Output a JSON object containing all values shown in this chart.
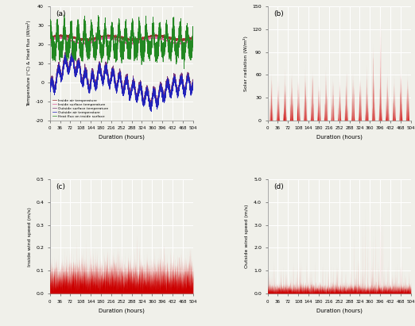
{
  "panel_a_label": "(a)",
  "panel_b_label": "(b)",
  "panel_c_label": "(c)",
  "panel_d_label": "(d)",
  "xlabel": "Duration (hours)",
  "ylabel_a": "Temperature (°C) & Heat flux (W/m²)",
  "ylabel_b": "Solar radiation (W/m²)",
  "ylabel_c": "Inside wind speed (m/s)",
  "ylabel_d": "Outside wind speed (m/s)",
  "x_ticks": [
    0,
    36,
    72,
    108,
    144,
    180,
    216,
    252,
    288,
    324,
    360,
    396,
    432,
    468,
    504
  ],
  "x_max": 504,
  "ylim_a": [
    -20,
    40
  ],
  "ylim_b": [
    0,
    150
  ],
  "ylim_c": [
    0.0,
    0.5
  ],
  "ylim_d": [
    0.0,
    5.0
  ],
  "yticks_a": [
    -20,
    -10,
    0,
    10,
    20,
    30,
    40
  ],
  "yticks_b": [
    0,
    30,
    60,
    90,
    120,
    150
  ],
  "yticks_c": [
    0.0,
    0.1,
    0.2,
    0.3,
    0.4,
    0.5
  ],
  "yticks_d": [
    0.0,
    1.0,
    2.0,
    3.0,
    4.0,
    5.0
  ],
  "color_inside_air": "#9B3333",
  "color_inside_surface": "#E060A0",
  "color_outside_surface": "#7B3B7B",
  "color_outside_air": "#2222BB",
  "color_heat_flux": "#228822",
  "color_red": "#CC0000",
  "legend_labels": [
    "Inside air temperature",
    "Inside surface temperature",
    "Outside surface temperature",
    "Outside air temperature",
    "Heat flux on inside surface"
  ],
  "bg_color": "#f0f0ea",
  "grid_color": "#ffffff",
  "n_points": 5000,
  "seed": 42
}
